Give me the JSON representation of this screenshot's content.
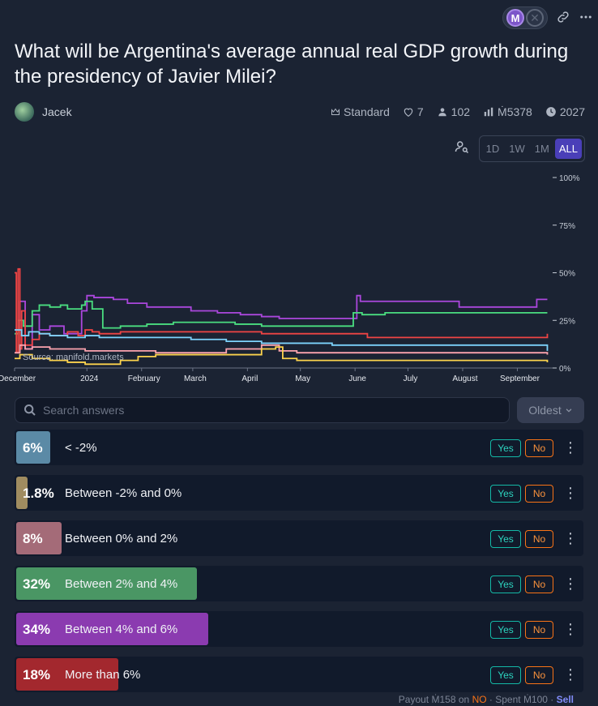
{
  "header": {
    "mana_letter": "M",
    "x_letter": "✕",
    "link_icon": "link-icon",
    "more_icon": "more-icon"
  },
  "market": {
    "title": "What will be Argentina's average annual real GDP growth during the presidency of Javier Milei?",
    "author": "Jacek",
    "stats": {
      "type": "Standard",
      "likes": "7",
      "traders": "102",
      "volume": "Ṁ5378",
      "close": "2027"
    }
  },
  "range": {
    "options": [
      "1D",
      "1W",
      "1M",
      "ALL"
    ],
    "selected": "ALL"
  },
  "chart_data": {
    "type": "line",
    "source_label": "Source: manifold.markets",
    "x_tick_labels": [
      "December",
      "2024",
      "February",
      "March",
      "April",
      "May",
      "June",
      "July",
      "August",
      "September"
    ],
    "y_tick_labels": [
      "100%",
      "75%",
      "50%",
      "25%",
      "0%"
    ],
    "ylim": [
      0,
      100
    ],
    "xlim": [
      0,
      305
    ],
    "x_tick_positions": [
      0,
      41,
      72,
      101,
      132,
      162,
      193,
      223,
      254,
      285
    ],
    "series": [
      {
        "color": "#ab47dd",
        "points": [
          [
            0,
            20
          ],
          [
            3,
            35
          ],
          [
            6,
            10
          ],
          [
            10,
            28
          ],
          [
            14,
            20
          ],
          [
            20,
            22
          ],
          [
            28,
            18
          ],
          [
            38,
            30
          ],
          [
            41,
            38
          ],
          [
            45,
            37
          ],
          [
            56,
            36
          ],
          [
            64,
            34
          ],
          [
            75,
            32
          ],
          [
            100,
            30
          ],
          [
            115,
            29
          ],
          [
            128,
            28
          ],
          [
            140,
            27
          ],
          [
            150,
            26
          ],
          [
            160,
            26
          ],
          [
            172,
            26
          ],
          [
            188,
            26
          ],
          [
            194,
            38
          ],
          [
            196,
            35
          ],
          [
            220,
            35
          ],
          [
            240,
            35
          ],
          [
            252,
            32
          ],
          [
            265,
            32
          ],
          [
            292,
            32
          ],
          [
            296,
            36
          ],
          [
            302,
            36
          ]
        ]
      },
      {
        "color": "#4ade80",
        "points": [
          [
            0,
            18
          ],
          [
            2,
            25
          ],
          [
            5,
            22
          ],
          [
            10,
            30
          ],
          [
            14,
            33
          ],
          [
            20,
            32
          ],
          [
            26,
            33
          ],
          [
            30,
            31
          ],
          [
            38,
            33
          ],
          [
            40,
            35
          ],
          [
            44,
            31
          ],
          [
            50,
            21
          ],
          [
            60,
            22
          ],
          [
            75,
            23
          ],
          [
            90,
            24
          ],
          [
            110,
            24
          ],
          [
            125,
            23
          ],
          [
            140,
            22
          ],
          [
            160,
            22
          ],
          [
            178,
            22
          ],
          [
            190,
            22
          ],
          [
            192,
            29
          ],
          [
            197,
            28
          ],
          [
            210,
            29
          ],
          [
            240,
            29
          ],
          [
            290,
            29
          ],
          [
            302,
            29
          ]
        ]
      },
      {
        "color": "#ef4444",
        "points": [
          [
            0,
            50
          ],
          [
            1,
            8
          ],
          [
            2,
            52
          ],
          [
            3,
            10
          ],
          [
            4,
            30
          ],
          [
            6,
            12
          ],
          [
            10,
            15
          ],
          [
            14,
            18
          ],
          [
            20,
            17
          ],
          [
            30,
            19
          ],
          [
            36,
            17
          ],
          [
            40,
            20
          ],
          [
            44,
            19
          ],
          [
            48,
            18
          ],
          [
            60,
            19
          ],
          [
            80,
            19
          ],
          [
            100,
            19
          ],
          [
            120,
            19
          ],
          [
            140,
            18
          ],
          [
            160,
            18
          ],
          [
            180,
            18
          ],
          [
            200,
            16
          ],
          [
            220,
            16
          ],
          [
            240,
            16
          ],
          [
            260,
            16
          ],
          [
            290,
            16
          ],
          [
            302,
            18
          ]
        ]
      },
      {
        "color": "#7dd3fc",
        "points": [
          [
            0,
            20
          ],
          [
            4,
            17
          ],
          [
            8,
            19
          ],
          [
            14,
            18
          ],
          [
            20,
            17
          ],
          [
            30,
            16
          ],
          [
            40,
            17
          ],
          [
            48,
            16
          ],
          [
            60,
            16
          ],
          [
            80,
            16
          ],
          [
            100,
            15
          ],
          [
            120,
            14
          ],
          [
            140,
            13
          ],
          [
            160,
            13
          ],
          [
            180,
            12
          ],
          [
            200,
            12
          ],
          [
            230,
            12
          ],
          [
            260,
            12
          ],
          [
            290,
            12
          ],
          [
            302,
            9
          ]
        ]
      },
      {
        "color": "#fda4af",
        "points": [
          [
            0,
            8
          ],
          [
            3,
            12
          ],
          [
            6,
            10
          ],
          [
            10,
            11
          ],
          [
            20,
            10
          ],
          [
            40,
            9
          ],
          [
            60,
            9
          ],
          [
            80,
            8
          ],
          [
            100,
            8
          ],
          [
            120,
            10
          ],
          [
            140,
            12
          ],
          [
            145,
            12
          ],
          [
            150,
            9
          ],
          [
            160,
            8
          ],
          [
            190,
            8
          ],
          [
            220,
            8
          ],
          [
            250,
            8
          ],
          [
            280,
            8
          ],
          [
            302,
            7
          ]
        ]
      },
      {
        "color": "#fcd34d",
        "points": [
          [
            0,
            5
          ],
          [
            3,
            7
          ],
          [
            10,
            5
          ],
          [
            20,
            4
          ],
          [
            30,
            3
          ],
          [
            40,
            2
          ],
          [
            50,
            2
          ],
          [
            60,
            4
          ],
          [
            70,
            6
          ],
          [
            80,
            7
          ],
          [
            100,
            7
          ],
          [
            130,
            7
          ],
          [
            140,
            10
          ],
          [
            148,
            11
          ],
          [
            152,
            5
          ],
          [
            160,
            4
          ],
          [
            200,
            4
          ],
          [
            240,
            4
          ],
          [
            270,
            4
          ],
          [
            302,
            3
          ]
        ]
      }
    ]
  },
  "search": {
    "placeholder": "Search answers"
  },
  "sort": {
    "label": "Oldest"
  },
  "answers": [
    {
      "pct": "6%",
      "label": "< -2%",
      "fill": 0.06,
      "color": "#5b8aa6",
      "yes": "Yes",
      "no": "No"
    },
    {
      "pct": "1.8%",
      "label": "Between -2% and 0%",
      "fill": 0.018,
      "color": "#a08c60",
      "yes": "Yes",
      "no": "No"
    },
    {
      "pct": "8%",
      "label": "Between 0% and 2%",
      "fill": 0.08,
      "color": "#a46b78",
      "yes": "Yes",
      "no": "No"
    },
    {
      "pct": "32%",
      "label": "Between 2% and 4%",
      "fill": 0.32,
      "color": "#4a9664",
      "yes": "Yes",
      "no": "No"
    },
    {
      "pct": "34%",
      "label": "Between 4% and 6%",
      "fill": 0.34,
      "color": "#8b3bb0",
      "yes": "Yes",
      "no": "No"
    },
    {
      "pct": "18%",
      "label": "More than 6%",
      "fill": 0.18,
      "color": "#a3282e",
      "yes": "Yes",
      "no": "No"
    }
  ],
  "footer": {
    "payout_label": "Payout",
    "payout_amount": "Ṁ158",
    "on_label": "on",
    "outcome": "NO",
    "spent_label": "Spent",
    "spent_amount": "Ṁ100",
    "sell_label": "Sell"
  }
}
